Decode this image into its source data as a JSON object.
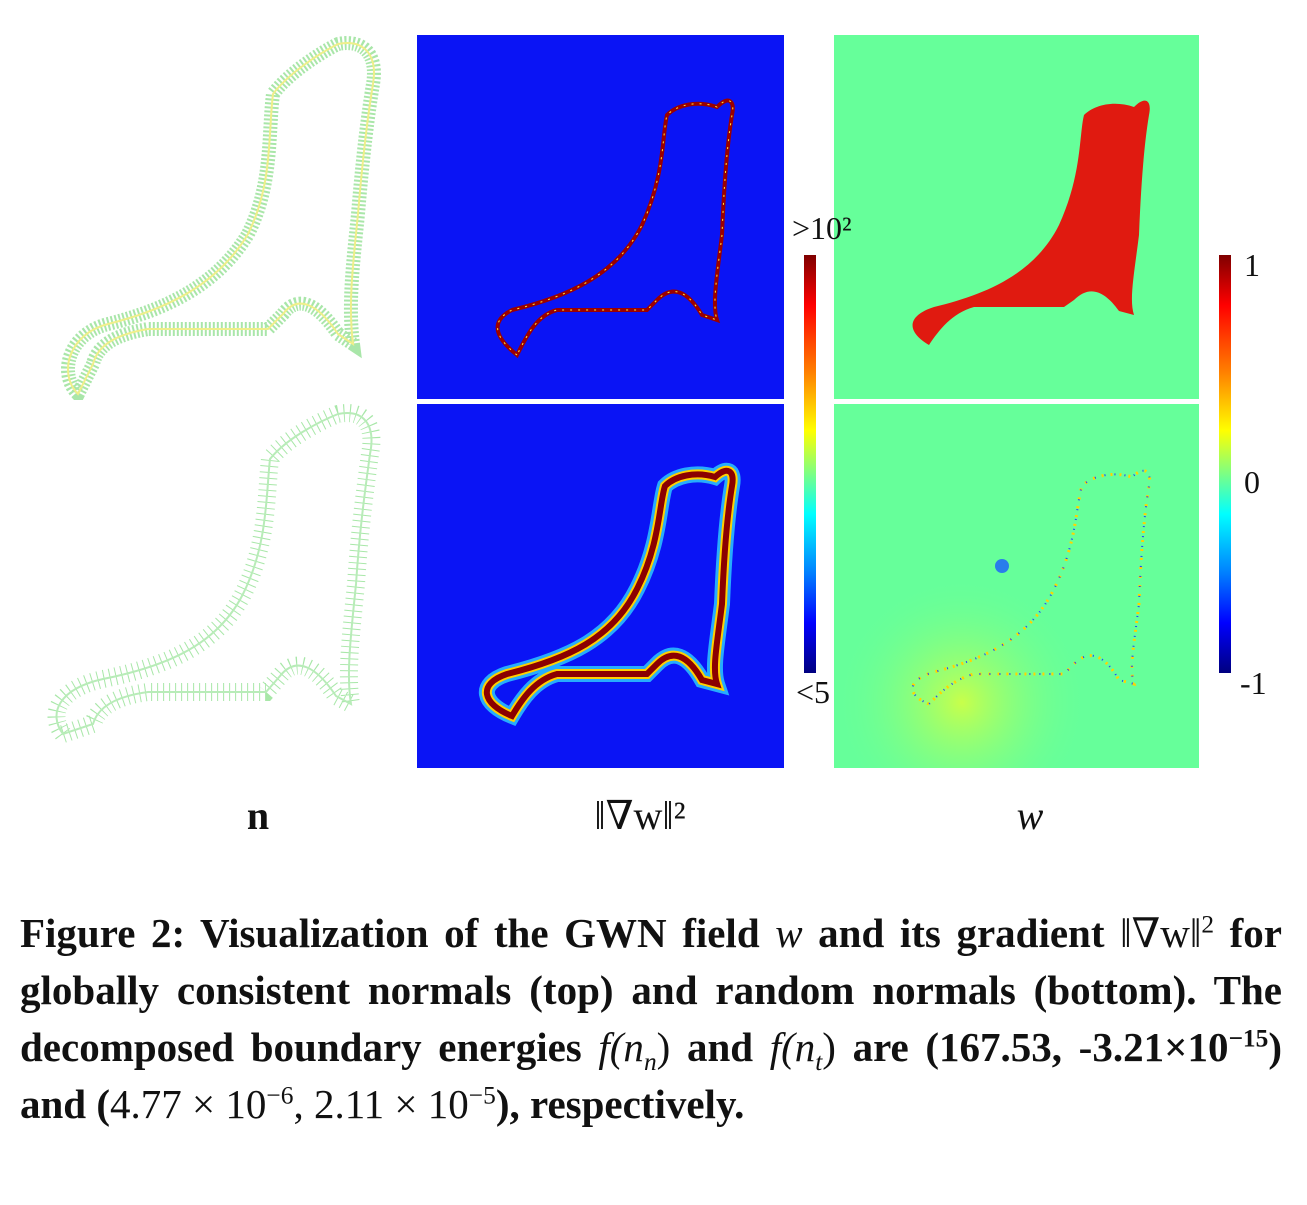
{
  "colorbar_gradient": {
    "max_label": ">10²",
    "min_label": "<5"
  },
  "colorbar_w": {
    "max_label": "1",
    "mid_label": "0",
    "min_label": "-1"
  },
  "column_labels": {
    "normals": "n",
    "gradient": "‖∇w‖²",
    "field": "w"
  },
  "caption": {
    "prefix": "Figure 2: Visualization of the GWN field ",
    "var_w": "w",
    "p1": " and its gradient",
    "grad_expr": "‖∇w‖",
    "grad_sup": "2",
    "p2": " for globally consistent normals (top) and random normals (bottom). The decomposed boundary energies ",
    "f_nn": "f(n",
    "f_nn_sub": "n",
    "close1": ")",
    "p3": " and ",
    "f_nt": "f(n",
    "f_nt_sub": "t",
    "close2": ")",
    "p4": " are (167.53, -3.21×10",
    "exp1": "−15",
    "p5": ") and (",
    "val2": "4.77 × 10",
    "exp2": "−6",
    "p6": ", ",
    "val3": "2.11 × 10",
    "exp3": "−5",
    "p7": "), respectively."
  },
  "colors": {
    "jet_low": "#0000ff",
    "jet_mid": "#66ff99",
    "jet_high": "#dd1100",
    "normal_green": "#88dd88",
    "normal_yellow": "#f3f080"
  }
}
